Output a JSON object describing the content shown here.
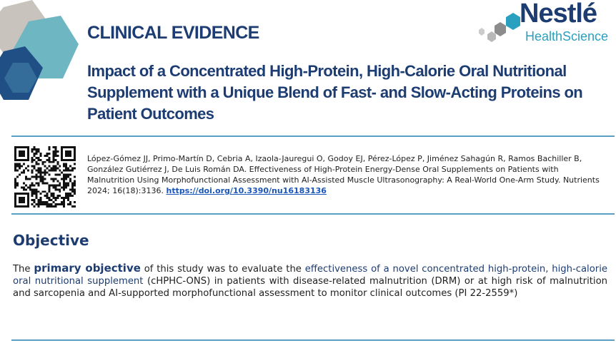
{
  "header": {
    "section_label": "CLINICAL EVIDENCE",
    "logo": {
      "brand_line1": "Nestlé",
      "brand_line2": "HealthScience"
    }
  },
  "title": "Impact of a Concentrated High-Protein, High-Calorie Oral Nutritional Supplement with a Unique Blend of Fast- and Slow-Acting Proteins on Patient Outcomes",
  "reference": {
    "citation": "López-Gómez JJ, Primo-Martín D, Cebria A, Izaola-Jauregui O, Godoy EJ, Pérez-López P, Jiménez Sahagún R, Ramos Bachiller B, González Gutiérrez J, De Luis Román DA. Effectiveness of High-Protein Energy-Dense Oral Supplements on Patients with Malnutrition Using Morphofunctional Assessment with AI-Assisted Muscle Ultrasonography: A Real-World One-Arm Study. Nutrients 2024; 16(18):3136.",
    "doi_link": "https://doi.org/10.3390/nu16183136",
    "qr_icon": "qr-code-icon"
  },
  "objective": {
    "heading": "Objective",
    "t1": "The ",
    "t2": "primary objective",
    "t3": " of this study was to evaluate the ",
    "t4": "effectiveness of a novel concentrated high-protein, high-calorie oral nutritional supplement",
    "t5": " (cHPHC-ONS) in patients with disease-related malnutrition (DRM) or at high risk of malnutrition and sarcopenia and AI-supported morphofunctional assessment to monitor clinical outcomes (PI 22-2559*)"
  },
  "colors": {
    "navy": "#1c3c72",
    "accent_blue": "#2aa0c0",
    "rule": "#5a9ec4",
    "link": "#1a56b8",
    "body_text": "#222222"
  }
}
